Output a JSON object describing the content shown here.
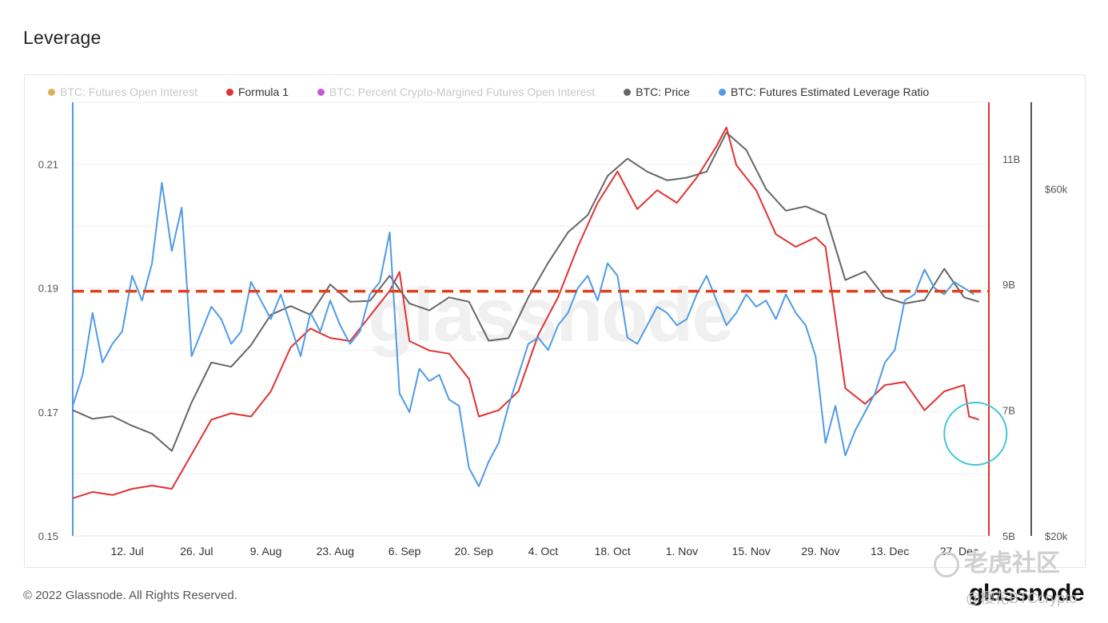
{
  "page": {
    "title": "Leverage",
    "copyright": "© 2022 Glassnode. All Rights Reserved.",
    "brand": "glassnode",
    "background_watermark": "glassnode",
    "community_watermark": "老虎社区",
    "user_handle": "@樱花BTCcrypto"
  },
  "legend": [
    {
      "label": "BTC: Futures Open Interest",
      "color": "#d9b25c",
      "active": false
    },
    {
      "label": "Formula 1",
      "color": "#e03232",
      "active": true
    },
    {
      "label": "BTC: Percent Crypto-Margined Futures Open Interest",
      "color": "#c25ad6",
      "active": false
    },
    {
      "label": "BTC: Price",
      "color": "#666666",
      "active": true
    },
    {
      "label": "BTC: Futures Estimated Leverage Ratio",
      "color": "#4f9be6",
      "active": true
    }
  ],
  "chart_data": {
    "type": "line",
    "title": "Leverage",
    "x_ticks": [
      "12. Jul",
      "26. Jul",
      "9. Aug",
      "23. Aug",
      "6. Sep",
      "20. Sep",
      "4. Oct",
      "18. Oct",
      "1. Nov",
      "15. Nov",
      "29. Nov",
      "13. Dec",
      "27. Dec"
    ],
    "y_left": {
      "ticks": [
        "0.21",
        "0.19",
        "0.17",
        "0.15"
      ],
      "range": [
        0.15,
        0.22
      ]
    },
    "y_mid": {
      "ticks": [
        "11B",
        "9B",
        "7B",
        "5B"
      ],
      "range": [
        5,
        11.9
      ]
    },
    "y_right": {
      "ticks": [
        "$60k",
        "$20k"
      ],
      "range": [
        20000,
        70000
      ]
    },
    "x_range": [
      "2021-07-01",
      "2022-01-02"
    ],
    "reference_line": {
      "value": 0.1895,
      "axis": "left",
      "color": "#e0401e",
      "style": "dashed"
    },
    "highlight_circle": {
      "date": "2021-12-29",
      "value": 0.1665,
      "axis": "left",
      "color": "#3cc8d8"
    },
    "grid": "horizontal",
    "series": [
      {
        "name": "BTC: Futures Estimated Leverage Ratio",
        "axis": "left",
        "color": "#4f9be6",
        "x": [
          "2021-07-01",
          "2021-07-03",
          "2021-07-05",
          "2021-07-07",
          "2021-07-09",
          "2021-07-11",
          "2021-07-13",
          "2021-07-15",
          "2021-07-17",
          "2021-07-19",
          "2021-07-21",
          "2021-07-23",
          "2021-07-25",
          "2021-07-27",
          "2021-07-29",
          "2021-07-31",
          "2021-08-02",
          "2021-08-04",
          "2021-08-06",
          "2021-08-08",
          "2021-08-10",
          "2021-08-12",
          "2021-08-14",
          "2021-08-16",
          "2021-08-18",
          "2021-08-20",
          "2021-08-22",
          "2021-08-24",
          "2021-08-26",
          "2021-08-28",
          "2021-08-30",
          "2021-09-01",
          "2021-09-03",
          "2021-09-05",
          "2021-09-07",
          "2021-09-09",
          "2021-09-11",
          "2021-09-13",
          "2021-09-15",
          "2021-09-17",
          "2021-09-19",
          "2021-09-21",
          "2021-09-23",
          "2021-09-25",
          "2021-09-27",
          "2021-09-29",
          "2021-10-01",
          "2021-10-03",
          "2021-10-05",
          "2021-10-07",
          "2021-10-09",
          "2021-10-11",
          "2021-10-13",
          "2021-10-15",
          "2021-10-17",
          "2021-10-19",
          "2021-10-21",
          "2021-10-23",
          "2021-10-25",
          "2021-10-27",
          "2021-10-29",
          "2021-10-31",
          "2021-11-02",
          "2021-11-04",
          "2021-11-06",
          "2021-11-08",
          "2021-11-10",
          "2021-11-12",
          "2021-11-14",
          "2021-11-16",
          "2021-11-18",
          "2021-11-20",
          "2021-11-22",
          "2021-11-24",
          "2021-11-26",
          "2021-11-28",
          "2021-11-30",
          "2021-12-02",
          "2021-12-04",
          "2021-12-06",
          "2021-12-08",
          "2021-12-10",
          "2021-12-12",
          "2021-12-14",
          "2021-12-16",
          "2021-12-18",
          "2021-12-20",
          "2021-12-22",
          "2021-12-24",
          "2021-12-26",
          "2021-12-28",
          "2021-12-30"
        ],
        "y": [
          0.171,
          0.176,
          0.186,
          0.178,
          0.181,
          0.183,
          0.192,
          0.188,
          0.194,
          0.207,
          0.196,
          0.203,
          0.179,
          0.183,
          0.187,
          0.185,
          0.181,
          0.183,
          0.191,
          0.188,
          0.185,
          0.189,
          0.184,
          0.179,
          0.186,
          0.183,
          0.188,
          0.184,
          0.181,
          0.183,
          0.189,
          0.191,
          0.199,
          0.173,
          0.17,
          0.177,
          0.175,
          0.176,
          0.172,
          0.171,
          0.161,
          0.158,
          0.162,
          0.165,
          0.171,
          0.176,
          0.181,
          0.182,
          0.18,
          0.184,
          0.186,
          0.19,
          0.192,
          0.188,
          0.194,
          0.192,
          0.182,
          0.181,
          0.184,
          0.187,
          0.186,
          0.184,
          0.185,
          0.189,
          0.192,
          0.188,
          0.184,
          0.186,
          0.189,
          0.187,
          0.188,
          0.185,
          0.189,
          0.186,
          0.184,
          0.179,
          0.165,
          0.171,
          0.163,
          0.167,
          0.17,
          0.173,
          0.178,
          0.18,
          0.188,
          0.189,
          0.193,
          0.19,
          0.189,
          0.191,
          0.19,
          0.189
        ]
      },
      {
        "name": "Formula 1",
        "axis": "mid",
        "color": "#e03232",
        "x": [
          "2021-07-01",
          "2021-07-05",
          "2021-07-09",
          "2021-07-13",
          "2021-07-17",
          "2021-07-21",
          "2021-07-25",
          "2021-07-29",
          "2021-08-02",
          "2021-08-06",
          "2021-08-10",
          "2021-08-14",
          "2021-08-18",
          "2021-08-22",
          "2021-08-26",
          "2021-08-30",
          "2021-09-03",
          "2021-09-05",
          "2021-09-07",
          "2021-09-11",
          "2021-09-15",
          "2021-09-19",
          "2021-09-21",
          "2021-09-25",
          "2021-09-29",
          "2021-10-03",
          "2021-10-07",
          "2021-10-11",
          "2021-10-15",
          "2021-10-19",
          "2021-10-23",
          "2021-10-27",
          "2021-10-31",
          "2021-11-04",
          "2021-11-08",
          "2021-11-10",
          "2021-11-12",
          "2021-11-16",
          "2021-11-20",
          "2021-11-24",
          "2021-11-28",
          "2021-11-30",
          "2021-12-04",
          "2021-12-08",
          "2021-12-12",
          "2021-12-16",
          "2021-12-20",
          "2021-12-24",
          "2021-12-28",
          "2021-12-29",
          "2021-12-31"
        ],
        "y": [
          5.6,
          5.7,
          5.65,
          5.75,
          5.8,
          5.75,
          6.3,
          6.85,
          6.95,
          6.9,
          7.3,
          8.0,
          8.3,
          8.15,
          8.1,
          8.5,
          8.9,
          9.2,
          8.1,
          7.95,
          7.9,
          7.5,
          6.9,
          7.0,
          7.3,
          8.2,
          8.8,
          9.6,
          10.3,
          10.8,
          10.2,
          10.5,
          10.3,
          10.7,
          11.2,
          11.5,
          10.9,
          10.5,
          9.8,
          9.6,
          9.75,
          9.6,
          7.35,
          7.1,
          7.4,
          7.45,
          7.0,
          7.3,
          7.4,
          6.9,
          6.85
        ]
      },
      {
        "name": "BTC: Price",
        "axis": "right",
        "color": "#666666",
        "x": [
          "2021-07-01",
          "2021-07-05",
          "2021-07-09",
          "2021-07-13",
          "2021-07-17",
          "2021-07-21",
          "2021-07-25",
          "2021-07-29",
          "2021-08-02",
          "2021-08-06",
          "2021-08-10",
          "2021-08-14",
          "2021-08-18",
          "2021-08-22",
          "2021-08-26",
          "2021-08-30",
          "2021-09-03",
          "2021-09-07",
          "2021-09-11",
          "2021-09-15",
          "2021-09-19",
          "2021-09-23",
          "2021-09-27",
          "2021-10-01",
          "2021-10-05",
          "2021-10-09",
          "2021-10-13",
          "2021-10-17",
          "2021-10-21",
          "2021-10-25",
          "2021-10-29",
          "2021-11-02",
          "2021-11-06",
          "2021-11-10",
          "2021-11-14",
          "2021-11-18",
          "2021-11-22",
          "2021-11-26",
          "2021-11-30",
          "2021-12-04",
          "2021-12-08",
          "2021-12-12",
          "2021-12-16",
          "2021-12-20",
          "2021-12-24",
          "2021-12-28",
          "2021-12-31"
        ],
        "y": [
          34500,
          33500,
          33800,
          32700,
          31800,
          29800,
          35400,
          40000,
          39500,
          42000,
          45500,
          46500,
          45500,
          49000,
          47000,
          47100,
          50000,
          46800,
          46000,
          47500,
          47000,
          42500,
          42800,
          47500,
          51500,
          55000,
          57000,
          61500,
          63500,
          62000,
          61000,
          61300,
          62000,
          66500,
          64500,
          60000,
          57500,
          58000,
          57000,
          49500,
          50500,
          47500,
          46800,
          47200,
          50800,
          47500,
          47000
        ]
      }
    ]
  }
}
